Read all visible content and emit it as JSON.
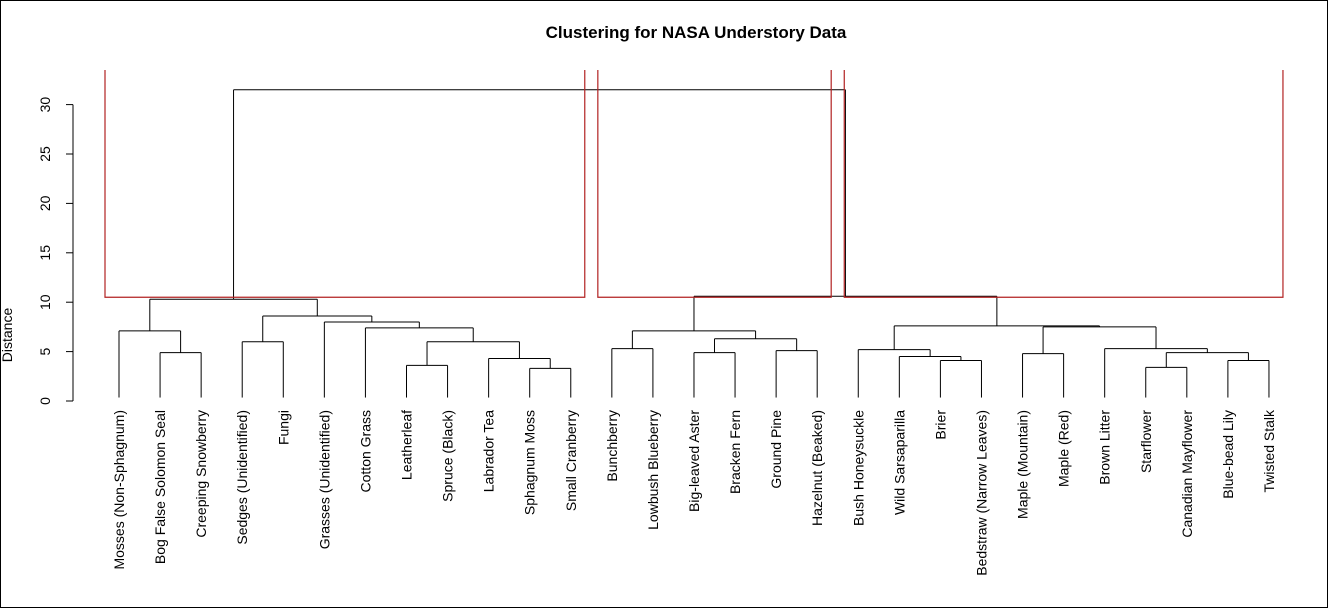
{
  "chart_data": {
    "type": "dendrogram",
    "title": "Clustering for NASA Understory Data",
    "ylabel": "Distance",
    "xlabel": "",
    "ylim": [
      0,
      33
    ],
    "yticks": [
      0,
      5,
      10,
      15,
      20,
      25,
      30
    ],
    "leaves": [
      "Mosses (Non-Sphagnum)",
      "Bog False Solomon Seal",
      "Creeping Snowberry",
      "Sedges (Unidentified)",
      "Fungi",
      "Grasses (Unidentified)",
      "Cotton Grass",
      "Leatherleaf",
      "Spruce (Black)",
      "Labrador Tea",
      "Sphagnum Moss",
      "Small Cranberry",
      "Bunchberry",
      "Lowbush Blueberry",
      "Big-leaved Aster",
      "Bracken Fern",
      "Ground Pine",
      "Hazelnut (Beaked)",
      "Bush Honeysuckle",
      "Wild Sarsaparilla",
      "Brier",
      "Bedstraw (Narrow Leaves)",
      "Maple (Mountain)",
      "Maple (Red)",
      "Brown Litter",
      "Starflower",
      "Canadian Mayflower",
      "Blue-bead Lily",
      "Twisted Stalk"
    ],
    "merges": [
      {
        "a": 1,
        "b": 2,
        "height": 4.9
      },
      {
        "a": 0,
        "b": "m0",
        "height": 7.1
      },
      {
        "a": 3,
        "b": 4,
        "height": 6.0
      },
      {
        "a": 7,
        "b": 8,
        "height": 3.6
      },
      {
        "a": 10,
        "b": 11,
        "height": 3.3
      },
      {
        "a": 9,
        "b": "m4",
        "height": 4.3
      },
      {
        "a": "m3",
        "b": "m5",
        "height": 6.0
      },
      {
        "a": 6,
        "b": "m6",
        "height": 7.4
      },
      {
        "a": 5,
        "b": "m7",
        "height": 8.0
      },
      {
        "a": "m2",
        "b": "m8",
        "height": 8.6
      },
      {
        "a": "m1",
        "b": "m9",
        "height": 10.3
      },
      {
        "a": 12,
        "b": 13,
        "height": 5.3
      },
      {
        "a": 14,
        "b": 15,
        "height": 4.9
      },
      {
        "a": 16,
        "b": 17,
        "height": 5.1
      },
      {
        "a": "m12",
        "b": "m13",
        "height": 6.3
      },
      {
        "a": "m11",
        "b": "m14",
        "height": 7.1
      },
      {
        "a": 20,
        "b": 21,
        "height": 4.1
      },
      {
        "a": 19,
        "b": "m16",
        "height": 4.5
      },
      {
        "a": 18,
        "b": "m17",
        "height": 5.2
      },
      {
        "a": 22,
        "b": 23,
        "height": 4.8
      },
      {
        "a": 25,
        "b": 26,
        "height": 3.4
      },
      {
        "a": 27,
        "b": 28,
        "height": 4.1
      },
      {
        "a": "m20",
        "b": "m21",
        "height": 4.9
      },
      {
        "a": 24,
        "b": "m22",
        "height": 5.3
      },
      {
        "a": "m19",
        "b": "m23",
        "height": 7.5
      },
      {
        "a": "m18",
        "b": "m24",
        "height": 7.6
      },
      {
        "a": "m15",
        "b": "m25",
        "height": 10.6
      },
      {
        "a": "m10",
        "b": "m26",
        "height": 31.5
      }
    ],
    "highlight_boxes": [
      {
        "from": 0,
        "to": 11,
        "height": 10.5,
        "color": "#b22222"
      },
      {
        "from": 12,
        "to": 17,
        "height": 10.5,
        "color": "#b22222"
      },
      {
        "from": 18,
        "to": 28,
        "height": 10.5,
        "color": "#b22222"
      }
    ]
  }
}
